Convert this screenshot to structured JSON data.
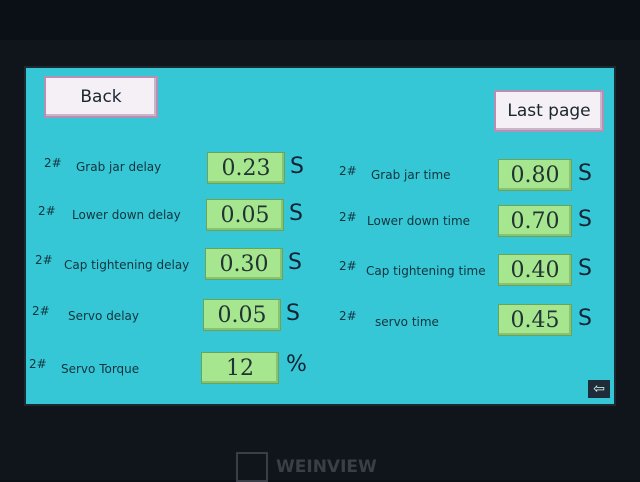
{
  "header": {
    "back_label": "Back",
    "last_page_label": "Last page"
  },
  "left_params": [
    {
      "prefix": "2#",
      "label": "Grab jar delay",
      "value": "0.23",
      "unit": "S"
    },
    {
      "prefix": "2#",
      "label": "Lower down delay",
      "value": "0.05",
      "unit": "S"
    },
    {
      "prefix": "2#",
      "label": "Cap tightening delay",
      "value": "0.30",
      "unit": "S"
    },
    {
      "prefix": "2#",
      "label": "Servo delay",
      "value": "0.05",
      "unit": "S"
    },
    {
      "prefix": "2#",
      "label": "Servo Torque",
      "value": "12",
      "unit": "%"
    }
  ],
  "right_params": [
    {
      "prefix": "2#",
      "label": "Grab jar time",
      "value": "0.80",
      "unit": "S"
    },
    {
      "prefix": "2#",
      "label": "Lower down time",
      "value": "0.70",
      "unit": "S"
    },
    {
      "prefix": "2#",
      "label": "Cap tightening time",
      "value": "0.40",
      "unit": "S"
    },
    {
      "prefix": "2#",
      "label": "servo time",
      "value": "0.45",
      "unit": "S"
    }
  ],
  "enter_icon": "arrow-left-enter-icon",
  "brand": "WEINVIEW",
  "colors": {
    "screen_bg": "#36c7d6",
    "value_box": "#a6e68e",
    "button": "#f4f0f6"
  }
}
